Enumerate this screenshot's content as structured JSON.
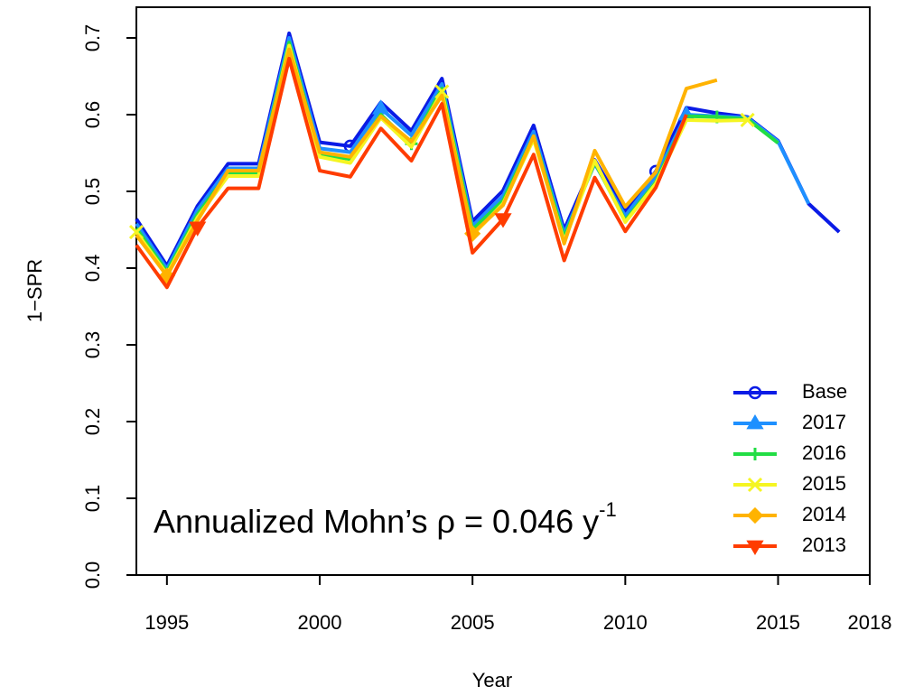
{
  "chart_data": {
    "type": "line",
    "xlabel": "Year",
    "ylabel": "1−SPR",
    "annotation": {
      "text": "Annualized Mohn’s ρ = 0.046 y",
      "superscript": "-1"
    },
    "x": [
      1994,
      1995,
      1996,
      1997,
      1998,
      1999,
      2000,
      2001,
      2002,
      2003,
      2004,
      2005,
      2006,
      2007,
      2008,
      2009,
      2010,
      2011,
      2012,
      2013,
      2014,
      2015,
      2016,
      2017
    ],
    "xlim": [
      1994,
      2018
    ],
    "xticks": [
      1995,
      2000,
      2005,
      2010,
      2015,
      2018
    ],
    "ylim": [
      0,
      0.74
    ],
    "yticks": [
      {
        "value": 0,
        "label": "0.0"
      },
      0.1,
      0.2,
      0.3,
      0.4,
      0.5,
      0.6,
      0.7
    ],
    "legend": "bottom-right",
    "series": [
      {
        "name": "Base",
        "color": "#0a1be6",
        "marker": "circle",
        "values": [
          0.464,
          0.403,
          0.481,
          0.536,
          0.536,
          0.706,
          0.564,
          0.559,
          0.616,
          0.579,
          0.647,
          0.461,
          0.501,
          0.586,
          0.45,
          0.541,
          0.474,
          0.526,
          0.609,
          0.602,
          0.597,
          0.566,
          0.484,
          0.447
        ]
      },
      {
        "name": "2017",
        "color": "#1e90ff",
        "marker": "triangle",
        "values": [
          0.458,
          0.399,
          0.476,
          0.53,
          0.53,
          0.7,
          0.556,
          0.551,
          0.608,
          0.573,
          0.64,
          0.455,
          0.494,
          0.578,
          0.445,
          0.536,
          0.468,
          0.52,
          0.6,
          0.598,
          0.596,
          0.565,
          0.484,
          null
        ]
      },
      {
        "name": "2016",
        "color": "#22dd44",
        "marker": "plus",
        "values": [
          0.452,
          0.395,
          0.47,
          0.524,
          0.524,
          0.694,
          0.548,
          0.542,
          0.6,
          0.562,
          0.634,
          0.45,
          0.488,
          0.572,
          0.44,
          0.538,
          0.462,
          0.512,
          0.598,
          0.597,
          0.594,
          0.563,
          null,
          null
        ]
      },
      {
        "name": "2015",
        "color": "#f5f522",
        "marker": "cross",
        "values": [
          0.447,
          0.392,
          0.466,
          0.52,
          0.52,
          0.69,
          0.545,
          0.537,
          0.596,
          0.558,
          0.63,
          0.443,
          0.484,
          0.568,
          0.435,
          0.54,
          0.46,
          0.51,
          0.593,
          0.592,
          0.593,
          null,
          null,
          null
        ]
      },
      {
        "name": "2014",
        "color": "#ffb300",
        "marker": "diamond",
        "values": [
          0.443,
          0.39,
          0.462,
          0.527,
          0.527,
          0.685,
          0.551,
          0.545,
          0.598,
          0.565,
          0.625,
          0.445,
          0.482,
          0.572,
          0.432,
          0.553,
          0.48,
          0.525,
          0.634,
          0.645,
          null,
          null,
          null,
          null
        ]
      },
      {
        "name": "2013",
        "color": "#ff3c00",
        "marker": "triangle-down",
        "values": [
          0.43,
          0.375,
          0.453,
          0.504,
          0.504,
          0.673,
          0.527,
          0.519,
          0.582,
          0.54,
          0.614,
          0.42,
          0.464,
          0.548,
          0.41,
          0.518,
          0.448,
          0.505,
          0.6,
          null,
          null,
          null,
          null,
          null
        ]
      }
    ]
  }
}
